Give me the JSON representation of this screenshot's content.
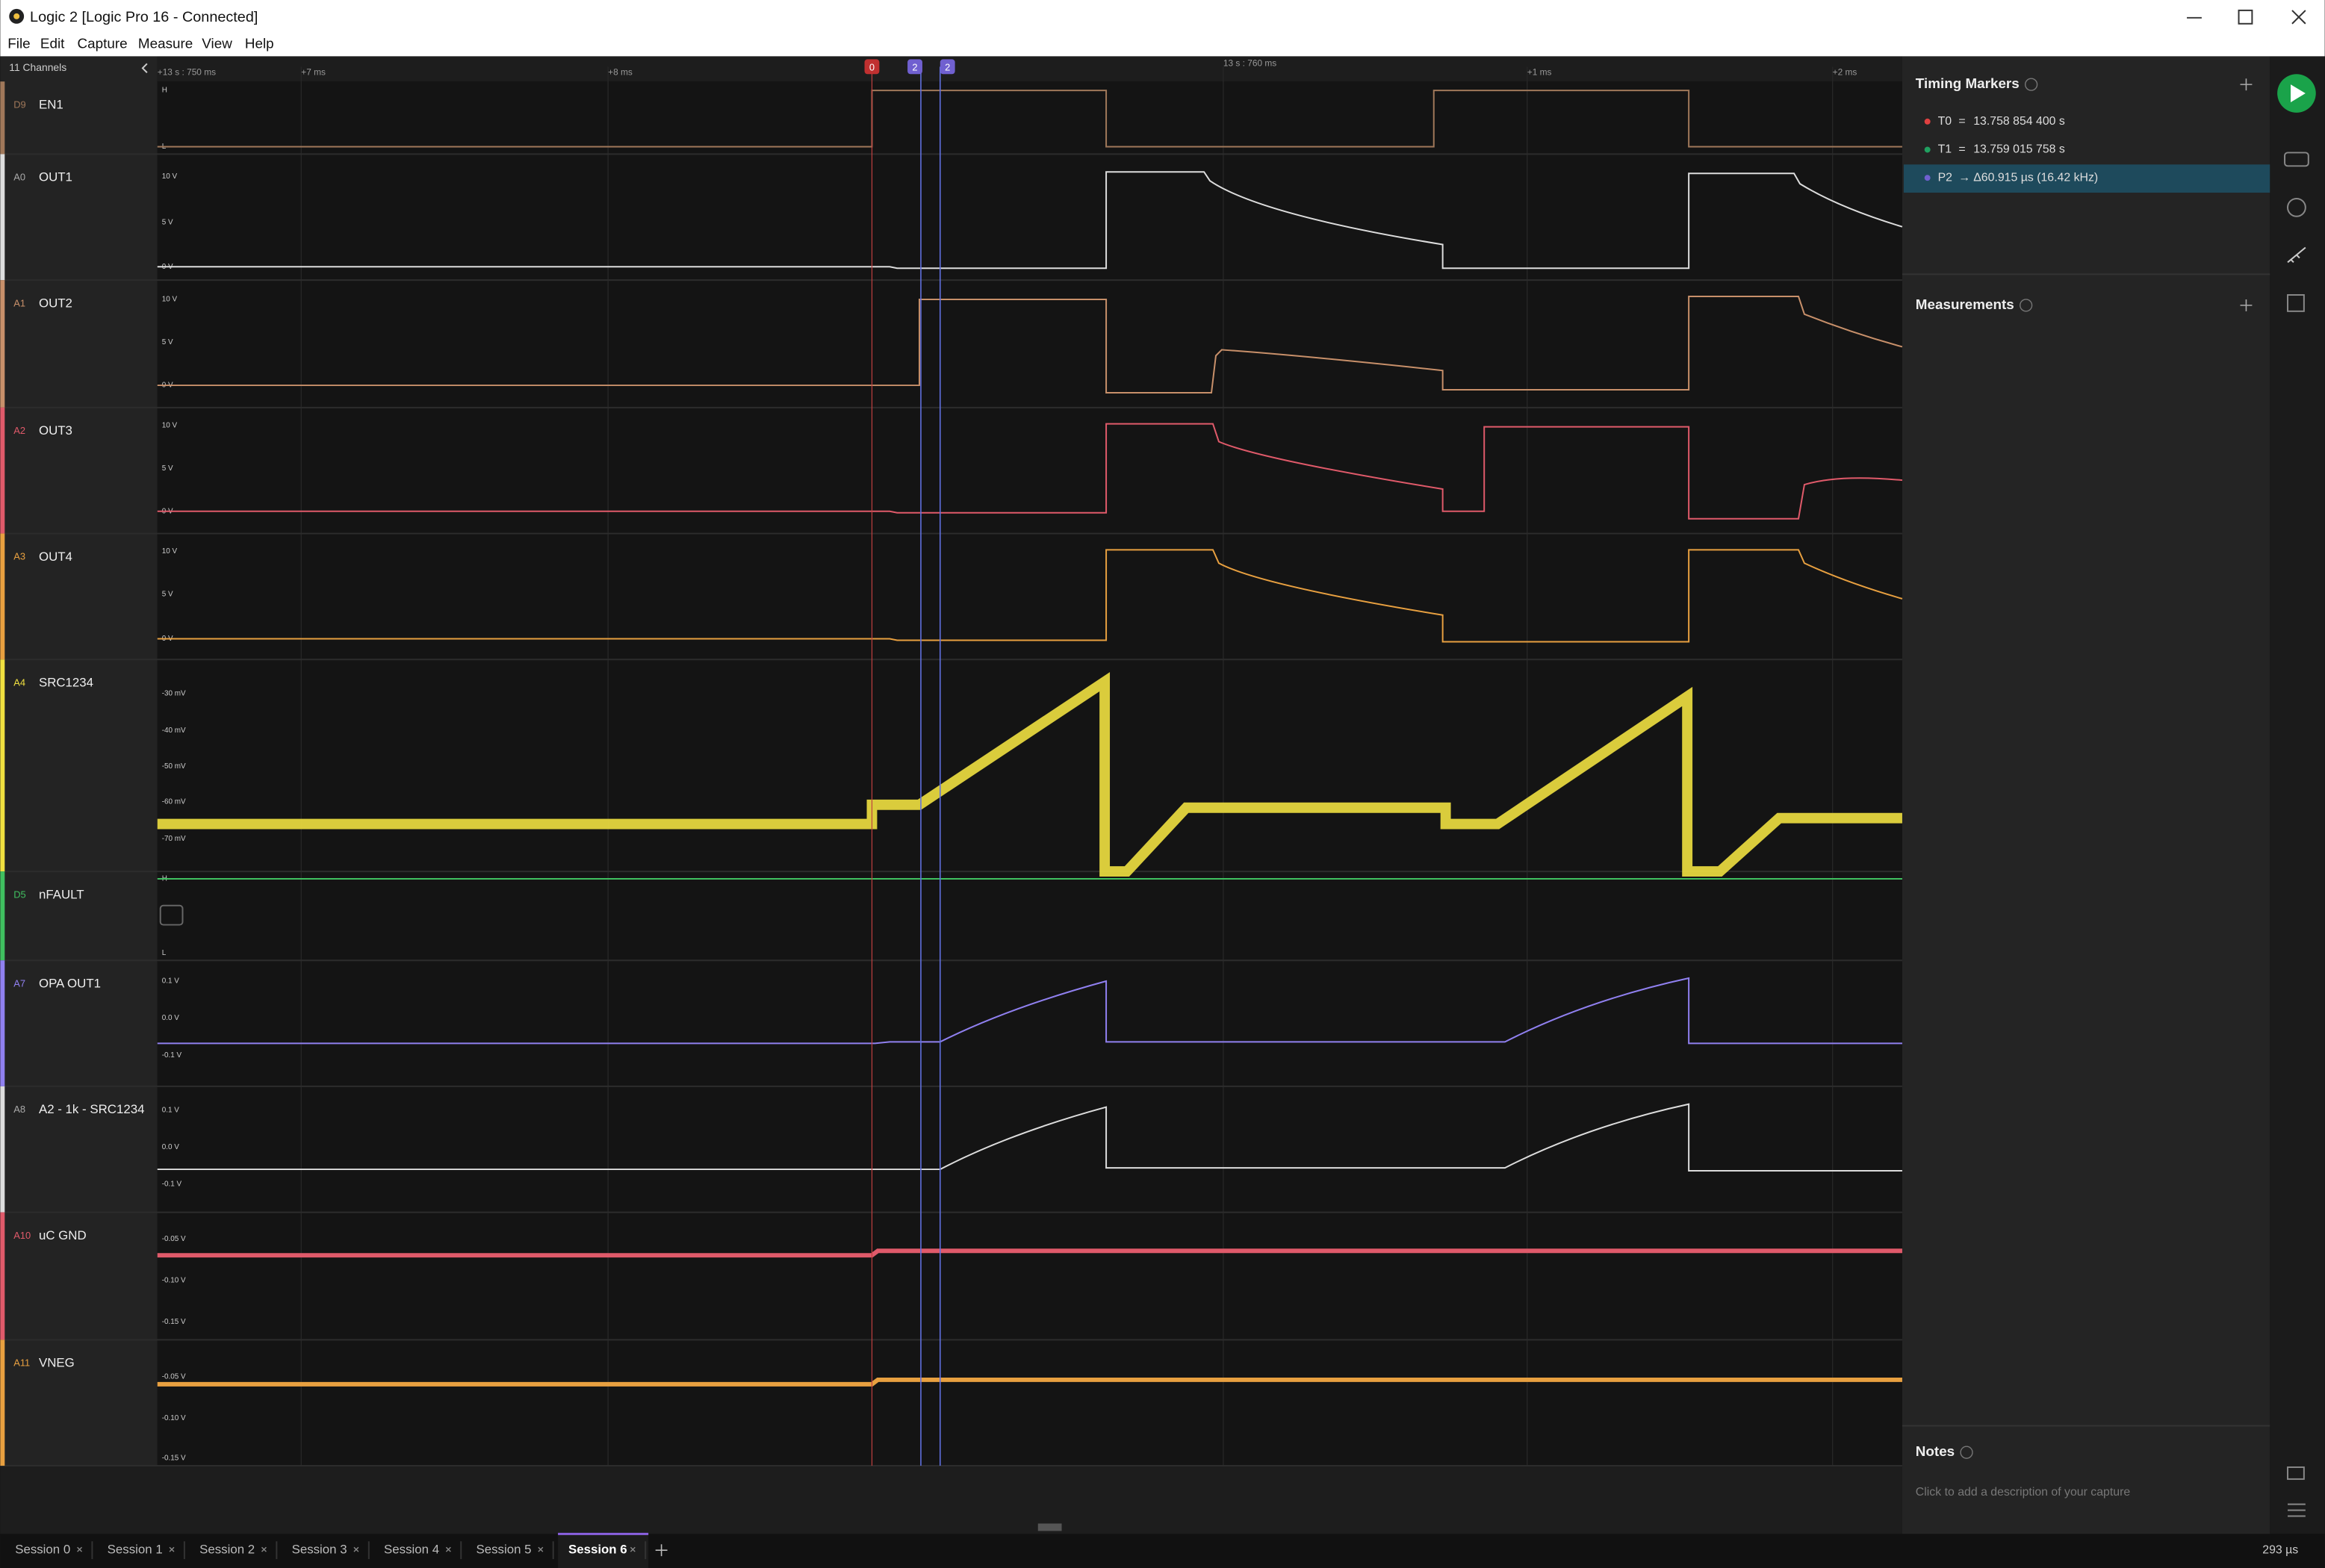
{
  "window": {
    "title": "Logic 2 [Logic Pro 16 - Connected]"
  },
  "menu": [
    "File",
    "Edit",
    "Capture",
    "Measure",
    "View",
    "Help"
  ],
  "toolbar": {
    "channels_label": "11 Channels"
  },
  "time_axis": {
    "labels": [
      "+13 s : 750 ms",
      "+7 ms",
      "+8 ms",
      "13 s : 760 ms",
      "+1 ms",
      "+2 ms"
    ],
    "markers": [
      "0",
      "2",
      "2"
    ]
  },
  "channels": [
    {
      "id": "D9",
      "name": "EN1",
      "axis_labels": [
        "H",
        "L"
      ]
    },
    {
      "id": "A0",
      "name": "OUT1",
      "axis_labels": [
        "10 V",
        "5 V",
        "0 V"
      ]
    },
    {
      "id": "A1",
      "name": "OUT2",
      "axis_labels": [
        "10 V",
        "5 V",
        "0 V"
      ]
    },
    {
      "id": "A2",
      "name": "OUT3",
      "axis_labels": [
        "10 V",
        "5 V",
        "0 V"
      ]
    },
    {
      "id": "A3",
      "name": "OUT4",
      "axis_labels": [
        "10 V",
        "5 V",
        "0 V"
      ]
    },
    {
      "id": "A4",
      "name": "SRC1234",
      "axis_labels": [
        "-30 mV",
        "-40 mV",
        "-50 mV",
        "-60 mV",
        "-70 mV"
      ]
    },
    {
      "id": "D5",
      "name": "nFAULT",
      "axis_labels": [
        "H",
        "L"
      ]
    },
    {
      "id": "A7",
      "name": "OPA OUT1",
      "axis_labels": [
        "0.1 V",
        "0.0 V",
        "-0.1 V"
      ]
    },
    {
      "id": "A8",
      "name": "A2 - 1k - SRC1234",
      "axis_labels": [
        "0.1 V",
        "0.0 V",
        "-0.1 V"
      ]
    },
    {
      "id": "A10",
      "name": "uC GND",
      "axis_labels": [
        "-0.05 V",
        "-0.10 V",
        "-0.15 V"
      ]
    },
    {
      "id": "A11",
      "name": "VNEG",
      "axis_labels": [
        "-0.05 V",
        "-0.10 V",
        "-0.15 V"
      ]
    }
  ],
  "sidebar": {
    "timing_markers": {
      "title": "Timing Markers",
      "items": [
        {
          "name": "T0",
          "op": "=",
          "value": "13.758 854 400 s"
        },
        {
          "name": "T1",
          "op": "=",
          "value": "13.759 015 758 s"
        },
        {
          "name": "P2",
          "op": "→",
          "value": "Δ60.915 µs (16.42 kHz)"
        }
      ]
    },
    "measurements": {
      "title": "Measurements"
    },
    "notes": {
      "title": "Notes",
      "placeholder": "Click to add a description of your capture"
    }
  },
  "tabs": [
    "Session 0",
    "Session 1",
    "Session 2",
    "Session 3",
    "Session 4",
    "Session 5",
    "Session 6"
  ],
  "status": "293 µs"
}
